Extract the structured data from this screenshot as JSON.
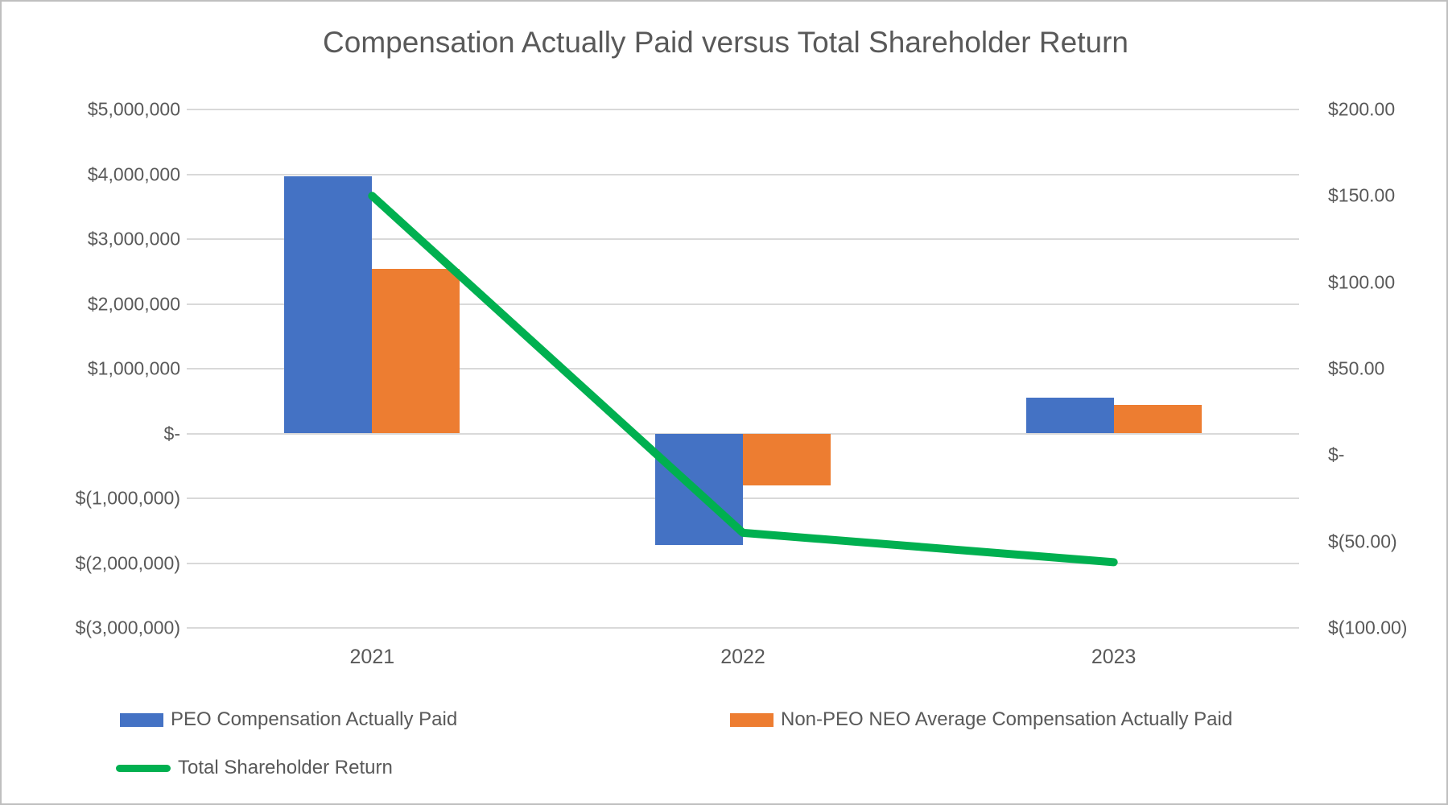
{
  "title": "Compensation Actually Paid versus Total Shareholder Return",
  "colors": {
    "peo_bar": "#4472C4",
    "non_peo_bar": "#ED7D31",
    "tsr_line": "#00B050",
    "gridline": "#D9D9D9",
    "axis_text": "#595959",
    "background": "#FFFFFF",
    "frame_border": "#BFBFBF"
  },
  "chart_data": {
    "type": "combo",
    "subtypes": [
      "bar",
      "bar",
      "line"
    ],
    "categories": [
      "2021",
      "2022",
      "2023"
    ],
    "series": [
      {
        "name": "PEO Compensation Actually Paid",
        "type": "bar",
        "axis": "left",
        "color": "#4472C4",
        "values": [
          3970000,
          -1720000,
          550000
        ]
      },
      {
        "name": "Non-PEO NEO Average Compensation Actually Paid",
        "type": "bar",
        "axis": "left",
        "color": "#ED7D31",
        "values": [
          2540000,
          -800000,
          435000
        ]
      },
      {
        "name": "Total Shareholder Return",
        "type": "line",
        "axis": "right",
        "color": "#00B050",
        "values": [
          150,
          -45,
          -62
        ]
      }
    ],
    "left_axis": {
      "min": -3000000,
      "max": 5000000,
      "step": 1000000,
      "ticks": [
        "$5,000,000",
        "$4,000,000",
        "$3,000,000",
        "$2,000,000",
        "$1,000,000",
        "$-",
        "$(1,000,000)",
        "$(2,000,000)",
        "$(3,000,000)"
      ]
    },
    "right_axis": {
      "min": -100,
      "max": 200,
      "step": 50,
      "ticks": [
        "$200.00",
        "$150.00",
        "$100.00",
        "$50.00",
        "$-",
        "$(50.00)",
        "$(100.00)"
      ]
    },
    "grid": true,
    "legend_position": "bottom-left"
  }
}
